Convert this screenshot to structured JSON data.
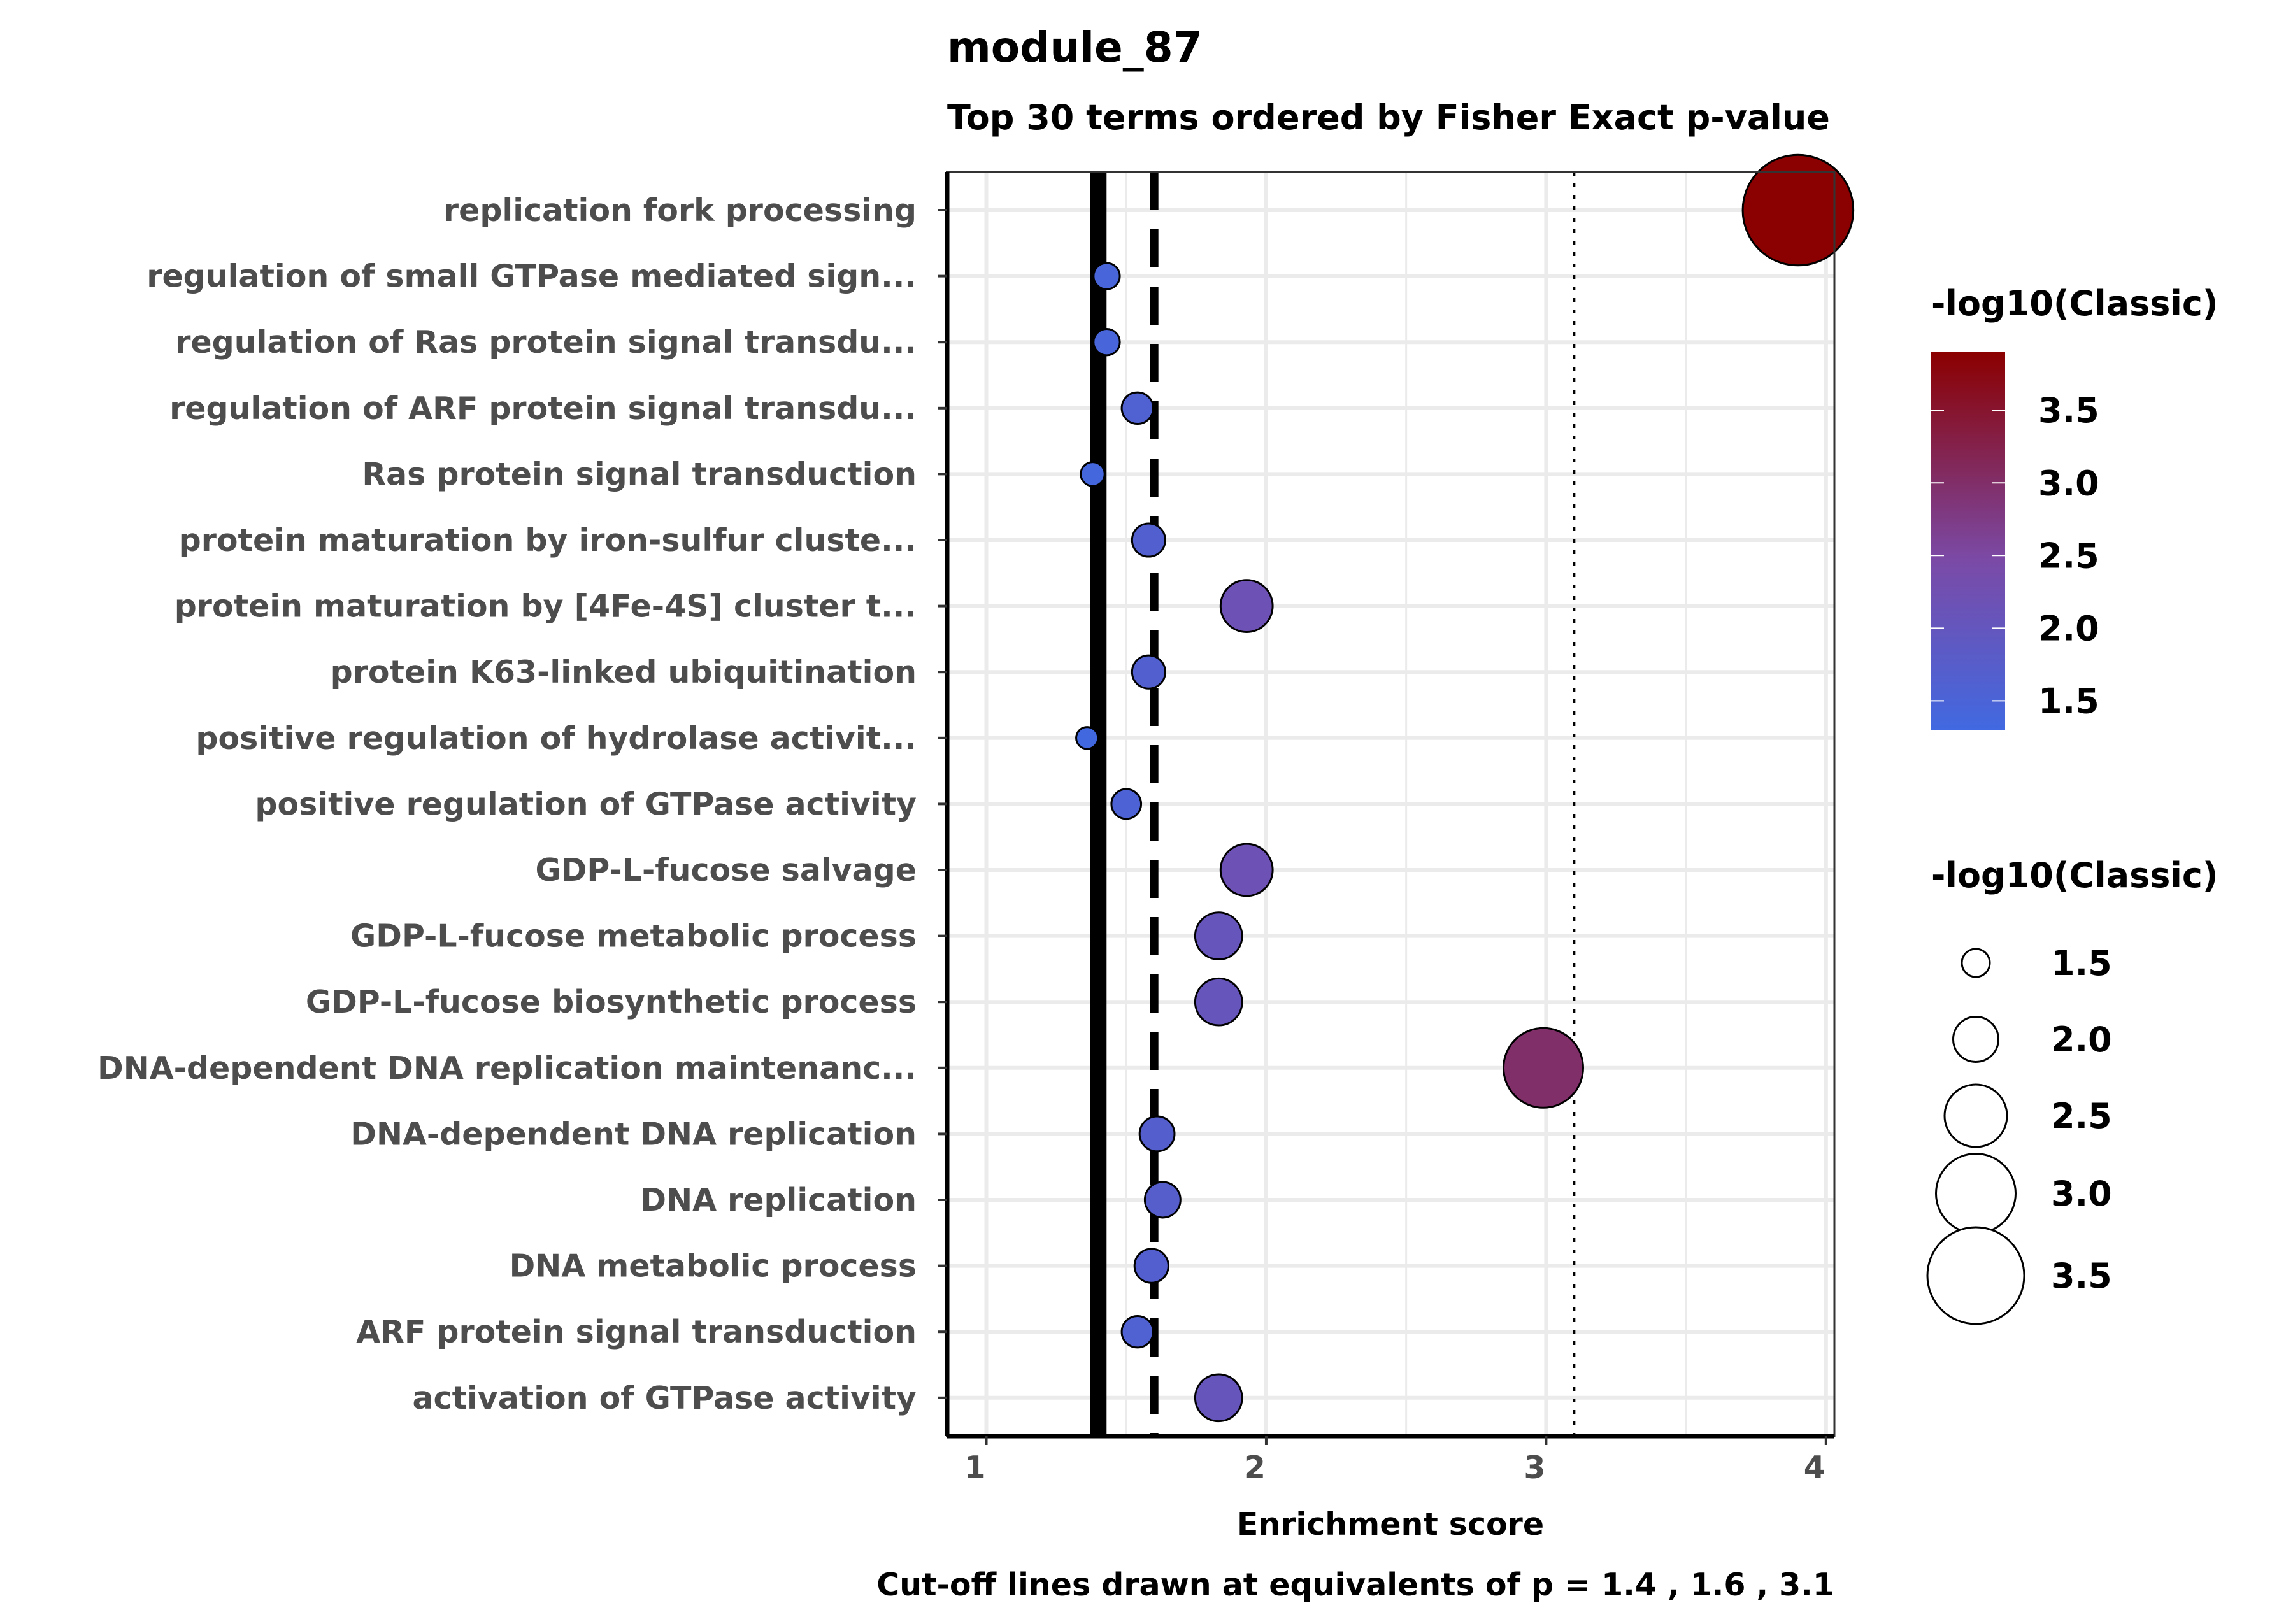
{
  "chart_data": {
    "type": "scatter",
    "title": "module_87",
    "subtitle": "Top 30 terms ordered by Fisher Exact p-value",
    "xlabel": "Enrichment score",
    "ylabel": "",
    "caption": "Cut-off lines drawn at equivalents of p = 1.4 , 1.6 , 3.1",
    "xlim": [
      0.86,
      4.03
    ],
    "xticks": [
      "1",
      "2",
      "3",
      "4"
    ],
    "grid": true,
    "cutoff_lines": [
      {
        "x": 1.4,
        "style": "solid"
      },
      {
        "x": 1.6,
        "style": "dashed"
      },
      {
        "x": 3.1,
        "style": "dotted"
      }
    ],
    "points": [
      {
        "term": "replication fork processing",
        "x": 3.9,
        "value": 3.9
      },
      {
        "term": "regulation of small GTPase mediated sign...",
        "x": 1.43,
        "value": 1.45
      },
      {
        "term": "regulation of Ras protein signal transdu...",
        "x": 1.43,
        "value": 1.45
      },
      {
        "term": "regulation of ARF protein signal transdu...",
        "x": 1.54,
        "value": 1.6
      },
      {
        "term": "Ras protein signal transduction",
        "x": 1.38,
        "value": 1.38
      },
      {
        "term": "protein maturation by iron-sulfur cluste...",
        "x": 1.58,
        "value": 1.65
      },
      {
        "term": "protein maturation by [4Fe-4S] cluster t...",
        "x": 1.93,
        "value": 2.2
      },
      {
        "term": "protein K63-linked ubiquitination",
        "x": 1.58,
        "value": 1.65
      },
      {
        "term": "positive regulation of hydrolase activit...",
        "x": 1.36,
        "value": 1.32
      },
      {
        "term": "positive regulation of GTPase activity",
        "x": 1.5,
        "value": 1.55
      },
      {
        "term": "GDP-L-fucose salvage",
        "x": 1.93,
        "value": 2.2
      },
      {
        "term": "GDP-L-fucose metabolic process",
        "x": 1.83,
        "value": 2.05
      },
      {
        "term": "GDP-L-fucose biosynthetic process",
        "x": 1.83,
        "value": 2.05
      },
      {
        "term": "DNA-dependent DNA replication maintenanc...",
        "x": 2.99,
        "value": 3.0
      },
      {
        "term": "DNA-dependent DNA replication",
        "x": 1.61,
        "value": 1.7
      },
      {
        "term": "DNA replication",
        "x": 1.63,
        "value": 1.72
      },
      {
        "term": "DNA metabolic process",
        "x": 1.59,
        "value": 1.67
      },
      {
        "term": "ARF protein signal transduction",
        "x": 1.54,
        "value": 1.6
      },
      {
        "term": "activation of GTPase activity",
        "x": 1.83,
        "value": 2.05
      }
    ],
    "color_legend": {
      "title": "-log10(Classic)",
      "range": [
        1.3,
        3.9
      ],
      "low_color": "#4169e1",
      "mid_color": "#7b4aa6",
      "high_color": "#8b0000",
      "labels": [
        "3.5",
        "3.0",
        "2.5",
        "2.0",
        "1.5"
      ],
      "values": [
        3.5,
        3.0,
        2.5,
        2.0,
        1.5
      ]
    },
    "size_legend": {
      "title": "-log10(Classic)",
      "labels": [
        "1.5",
        "2.0",
        "2.5",
        "3.0",
        "3.5"
      ],
      "values": [
        1.5,
        2.0,
        2.5,
        3.0,
        3.5
      ]
    }
  }
}
